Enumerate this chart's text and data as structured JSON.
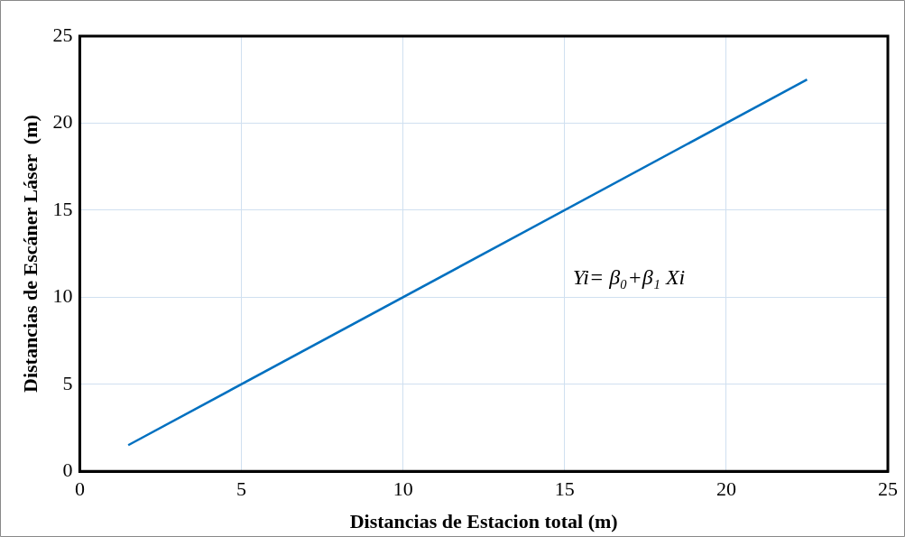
{
  "chart_data": {
    "type": "line",
    "xlabel": "Distancias de Estacion total (m)",
    "ylabel": "Distancias de Escáner Láser  (m)",
    "annotations": [
      "Yi= β₀+β₁ Xi"
    ],
    "series": [
      {
        "color": "#0070c0",
        "x": [
          1.5,
          22.5
        ],
        "values": [
          1.5,
          22.5
        ]
      }
    ],
    "xlim": [
      0,
      25
    ],
    "xticks": [
      0,
      5,
      10,
      15,
      20,
      25
    ],
    "ylim": [
      0,
      25
    ],
    "yticks": [
      0,
      5,
      10,
      15,
      20,
      25
    ],
    "grid": true,
    "legend": false,
    "marker": "none",
    "line_style": "solid"
  }
}
